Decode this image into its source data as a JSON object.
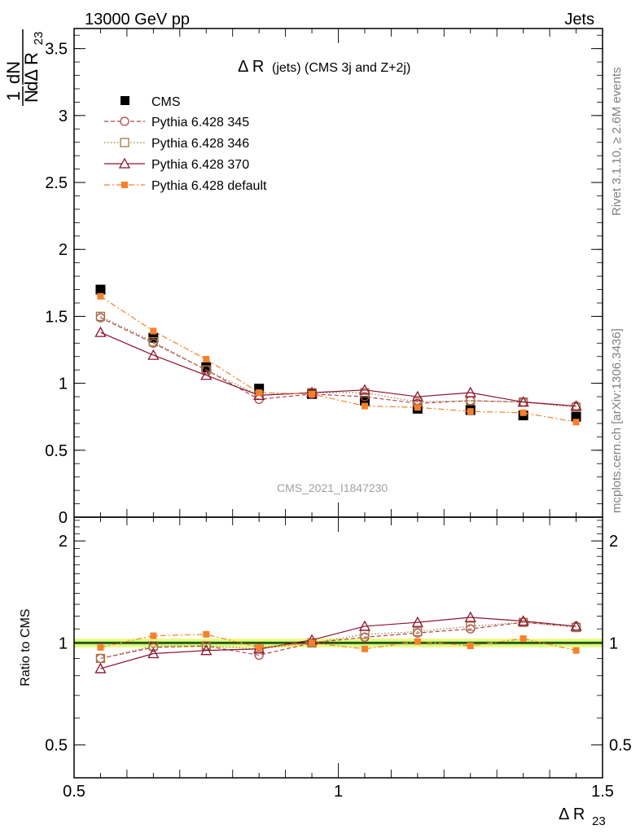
{
  "header": {
    "left": "13000 GeV pp",
    "right": "Jets"
  },
  "side_labels": {
    "rivet": "Rivet 3.1.10, ≥ 2.6M events",
    "mcplots": "mcplots.cern.ch [arXiv:1306.3436]"
  },
  "colors": {
    "cms": "#000000",
    "p345": "#b5414f",
    "p346": "#9c7c3c",
    "p370": "#8b1230",
    "pdef": "#f7802a",
    "band_inner": "#7be04d",
    "band_outer": "#f0f58a"
  },
  "chart_data": [
    {
      "panel": "main",
      "type": "scatter",
      "title_main": "Δ R",
      "title_sub": "(jets) (CMS 3j and Z+2j)",
      "ylabel_frac_num": "1",
      "ylabel_frac_den": "N",
      "ylabel_num": "dN",
      "ylabel_den": "dΔ R",
      "ylabel_den_sub": "23",
      "watermark": "CMS_2021_I1847230",
      "xlim": [
        0.5,
        1.5
      ],
      "ylim": [
        0,
        3.65
      ],
      "yticks": [
        0,
        0.5,
        1,
        1.5,
        2,
        2.5,
        3,
        3.5
      ],
      "ytick_labels": [
        "0",
        "0.5",
        "1",
        "1.5",
        "2",
        "2.5",
        "3",
        "3.5"
      ],
      "x": [
        0.55,
        0.65,
        0.75,
        0.85,
        0.95,
        1.05,
        1.15,
        1.25,
        1.35,
        1.45
      ],
      "series": [
        {
          "key": "cms",
          "name": "CMS",
          "values": [
            1.7,
            1.34,
            1.12,
            0.96,
            0.92,
            0.87,
            0.81,
            0.8,
            0.76,
            0.75
          ]
        },
        {
          "key": "p345",
          "name": "Pythia 6.428 345",
          "values": [
            1.49,
            1.3,
            1.1,
            0.88,
            0.92,
            0.9,
            0.85,
            0.87,
            0.86,
            0.83
          ]
        },
        {
          "key": "p346",
          "name": "Pythia 6.428 346",
          "values": [
            1.5,
            1.31,
            1.1,
            0.91,
            0.93,
            0.93,
            0.86,
            0.87,
            0.86,
            0.82
          ]
        },
        {
          "key": "p370",
          "name": "Pythia 6.428 370",
          "values": [
            1.38,
            1.21,
            1.06,
            0.91,
            0.93,
            0.95,
            0.9,
            0.93,
            0.86,
            0.83
          ]
        },
        {
          "key": "pdef",
          "name": "Pythia 6.428 default",
          "values": [
            1.65,
            1.39,
            1.18,
            0.93,
            0.92,
            0.83,
            0.82,
            0.79,
            0.78,
            0.71
          ]
        }
      ]
    },
    {
      "panel": "ratio",
      "type": "scatter",
      "ylabel": "Ratio to CMS",
      "xlabel_main": "Δ R",
      "xlabel_sub": "23",
      "xlim": [
        0.5,
        1.5
      ],
      "ylim": [
        0.4,
        2.35
      ],
      "yticks": [
        0.5,
        1,
        2
      ],
      "ytick_labels": [
        "0.5",
        "1",
        "2"
      ],
      "xticks": [
        0.5,
        1,
        1.5
      ],
      "xtick_labels": [
        "0.5",
        "1",
        "1.5"
      ],
      "band_inner": 0.012,
      "band_outer": 0.03,
      "x": [
        0.55,
        0.65,
        0.75,
        0.85,
        0.95,
        1.05,
        1.15,
        1.25,
        1.35,
        1.45
      ],
      "series": [
        {
          "key": "p345",
          "values": [
            0.9,
            0.97,
            0.98,
            0.92,
            1.0,
            1.04,
            1.07,
            1.1,
            1.15,
            1.12
          ]
        },
        {
          "key": "p346",
          "values": [
            0.9,
            0.98,
            0.98,
            0.96,
            1.0,
            1.06,
            1.08,
            1.12,
            1.15,
            1.11
          ]
        },
        {
          "key": "p370",
          "values": [
            0.84,
            0.93,
            0.95,
            0.96,
            1.02,
            1.12,
            1.15,
            1.19,
            1.16,
            1.12
          ]
        },
        {
          "key": "pdef",
          "values": [
            0.97,
            1.05,
            1.06,
            0.97,
            1.0,
            0.96,
            1.01,
            0.98,
            1.03,
            0.95
          ]
        }
      ]
    }
  ]
}
